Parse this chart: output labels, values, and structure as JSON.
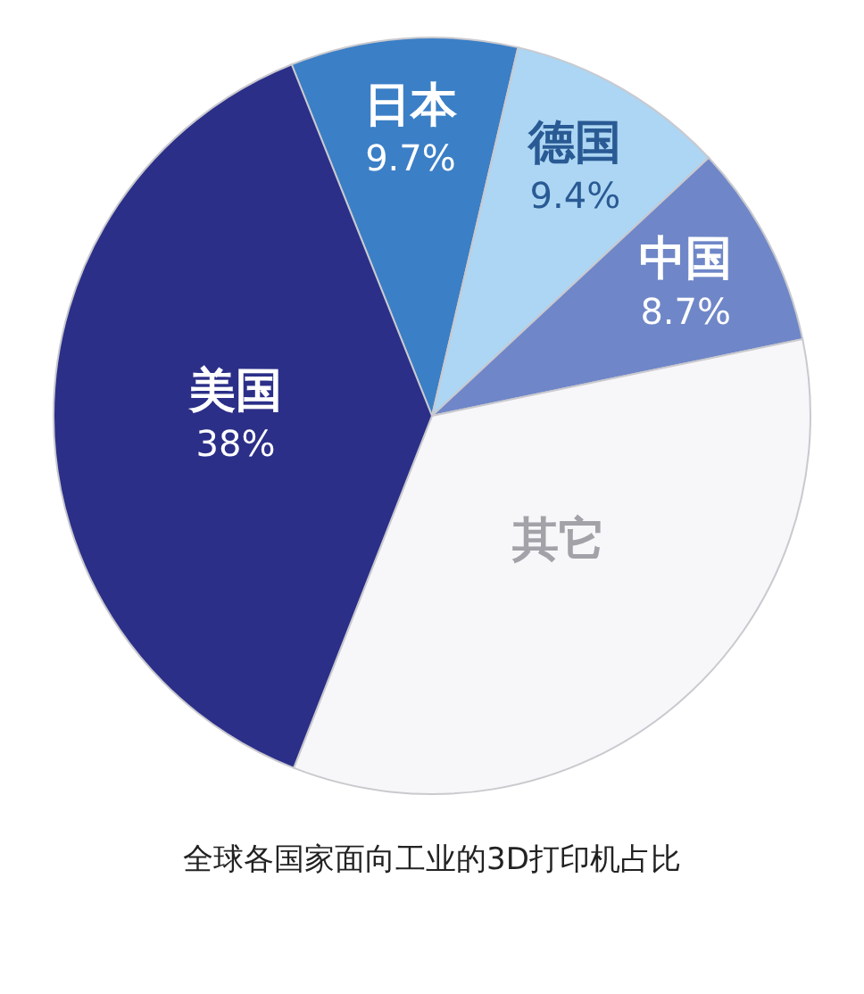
{
  "chart_data": {
    "type": "pie",
    "title": "全球各国家面向工业的3D打印机占比",
    "categories": [
      "日本",
      "德国",
      "中国",
      "其它",
      "美国"
    ],
    "values": [
      9.7,
      9.4,
      8.7,
      34.2,
      38
    ],
    "value_labels": [
      "9.7%",
      "9.4%",
      "8.7%",
      null,
      "38%"
    ],
    "colors": [
      "#3b7fc6",
      "#acd6f3",
      "#6f87c8",
      "#f7f7f9",
      "#2b2f88"
    ],
    "legend": false
  }
}
